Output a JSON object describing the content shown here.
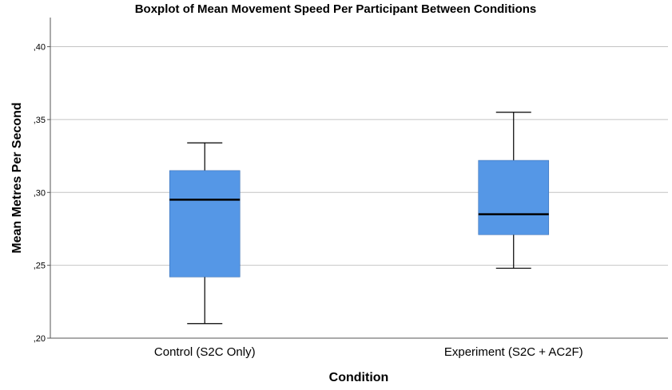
{
  "chart_data": {
    "type": "boxplot",
    "title": "Boxplot of Mean Movement Speed Per Participant Between Conditions",
    "xlabel": "Condition",
    "ylabel": "Mean Metres Per Second",
    "ylim": [
      0.2,
      0.42
    ],
    "yticks": [
      0.2,
      0.25,
      0.3,
      0.35,
      0.4
    ],
    "ytick_labels": [
      ",20",
      ",25",
      ",30",
      ",35",
      ",40"
    ],
    "grid": true,
    "box_color": "#5597e6",
    "categories": [
      "Control (S2C Only)",
      "Experiment (S2C + AC2F)"
    ],
    "boxes": [
      {
        "category": "Control (S2C Only)",
        "min": 0.21,
        "q1": 0.242,
        "median": 0.295,
        "q3": 0.315,
        "max": 0.334
      },
      {
        "category": "Experiment (S2C + AC2F)",
        "min": 0.248,
        "q1": 0.271,
        "median": 0.285,
        "q3": 0.322,
        "max": 0.355
      }
    ]
  }
}
